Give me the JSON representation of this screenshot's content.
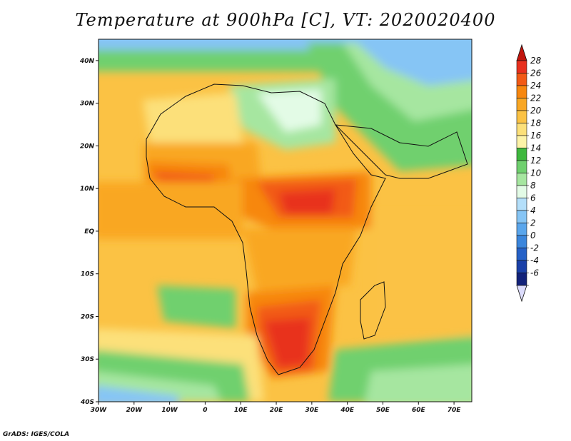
{
  "title": "Temperature at 900hPa [C], VT: 2020020400",
  "footer": "GrADS: IGES/COLA",
  "map": {
    "lon_range": [
      -30,
      75
    ],
    "lat_range": [
      -40,
      45
    ],
    "lon_ticks": [
      "30W",
      "20W",
      "10W",
      "0",
      "10E",
      "20E",
      "30E",
      "40E",
      "50E",
      "60E",
      "70E"
    ],
    "lat_ticks": [
      "40N",
      "30N",
      "20N",
      "10N",
      "EQ",
      "10S",
      "20S",
      "30S",
      "40S"
    ]
  },
  "colorbar": {
    "labels": [
      "28",
      "26",
      "24",
      "22",
      "20",
      "18",
      "16",
      "14",
      "12",
      "10",
      "8",
      "6",
      "4",
      "2",
      "0",
      "-2",
      "-4",
      "-6"
    ],
    "colors": [
      "#e8301e",
      "#f25a16",
      "#f7870f",
      "#f9a724",
      "#fbc244",
      "#fce07a",
      "#fdf3a8",
      "#3fb83e",
      "#6fd06e",
      "#a6e6a0",
      "#e3fbe6",
      "#b4dffa",
      "#86c5f5",
      "#5aa6ec",
      "#3b86dc",
      "#2561c7",
      "#1a40a8",
      "#12227a"
    ],
    "top_color": "#c1150d",
    "bottom_color": "#dcdcfc"
  }
}
